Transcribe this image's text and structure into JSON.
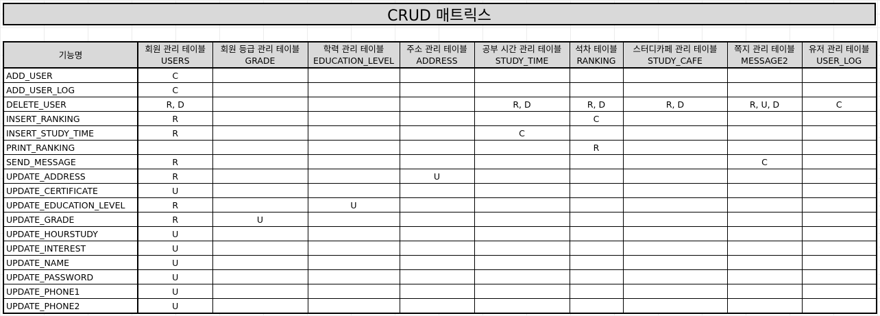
{
  "title": "CRUD 매트릭스",
  "function_header": "기능명",
  "columns": [
    {
      "kr": "회원 관리 테이블",
      "en": "USERS"
    },
    {
      "kr": "회원 등급 관리 테이블",
      "en": "GRADE"
    },
    {
      "kr": "학력 관리 테이블",
      "en": "EDUCATION_LEVEL"
    },
    {
      "kr": "주소 관리 테이블",
      "en": "ADDRESS"
    },
    {
      "kr": "공부 시간 관리 테이블",
      "en": "STUDY_TIME"
    },
    {
      "kr": "석차 테이블",
      "en": "RANKING"
    },
    {
      "kr": "스터디카페 관리 테이블",
      "en": "STUDY_CAFE"
    },
    {
      "kr": "쪽지 관리 테이블",
      "en": "MESSAGE2"
    },
    {
      "kr": "유저 관리 테이블",
      "en": "USER_LOG"
    }
  ],
  "rows": [
    {
      "name": "ADD_USER",
      "cells": [
        "C",
        "",
        "",
        "",
        "",
        "",
        "",
        "",
        ""
      ]
    },
    {
      "name": "ADD_USER_LOG",
      "cells": [
        "C",
        "",
        "",
        "",
        "",
        "",
        "",
        "",
        ""
      ]
    },
    {
      "name": "DELETE_USER",
      "cells": [
        "R, D",
        "",
        "",
        "",
        "R, D",
        "R, D",
        "R, D",
        "R, U, D",
        "C"
      ]
    },
    {
      "name": "INSERT_RANKING",
      "cells": [
        "R",
        "",
        "",
        "",
        "",
        "C",
        "",
        "",
        ""
      ]
    },
    {
      "name": "INSERT_STUDY_TIME",
      "cells": [
        "R",
        "",
        "",
        "",
        "C",
        "",
        "",
        "",
        ""
      ]
    },
    {
      "name": "PRINT_RANKING",
      "cells": [
        "",
        "",
        "",
        "",
        "",
        "R",
        "",
        "",
        ""
      ]
    },
    {
      "name": "SEND_MESSAGE",
      "cells": [
        "R",
        "",
        "",
        "",
        "",
        "",
        "",
        "C",
        ""
      ]
    },
    {
      "name": "UPDATE_ADDRESS",
      "cells": [
        "R",
        "",
        "",
        "U",
        "",
        "",
        "",
        "",
        ""
      ]
    },
    {
      "name": "UPDATE_CERTIFICATE",
      "cells": [
        "U",
        "",
        "",
        "",
        "",
        "",
        "",
        "",
        ""
      ]
    },
    {
      "name": "UPDATE_EDUCATION_LEVEL",
      "cells": [
        "R",
        "",
        "U",
        "",
        "",
        "",
        "",
        "",
        ""
      ]
    },
    {
      "name": "UPDATE_GRADE",
      "cells": [
        "R",
        "U",
        "",
        "",
        "",
        "",
        "",
        "",
        ""
      ]
    },
    {
      "name": "UPDATE_HOURSTUDY",
      "cells": [
        "U",
        "",
        "",
        "",
        "",
        "",
        "",
        "",
        ""
      ]
    },
    {
      "name": "UPDATE_INTEREST",
      "cells": [
        "U",
        "",
        "",
        "",
        "",
        "",
        "",
        "",
        ""
      ]
    },
    {
      "name": "UPDATE_NAME",
      "cells": [
        "U",
        "",
        "",
        "",
        "",
        "",
        "",
        "",
        ""
      ]
    },
    {
      "name": "UPDATE_PASSWORD",
      "cells": [
        "U",
        "",
        "",
        "",
        "",
        "",
        "",
        "",
        ""
      ]
    },
    {
      "name": "UPDATE_PHONE1",
      "cells": [
        "U",
        "",
        "",
        "",
        "",
        "",
        "",
        "",
        ""
      ]
    },
    {
      "name": "UPDATE_PHONE2",
      "cells": [
        "U",
        "",
        "",
        "",
        "",
        "",
        "",
        "",
        ""
      ]
    }
  ]
}
